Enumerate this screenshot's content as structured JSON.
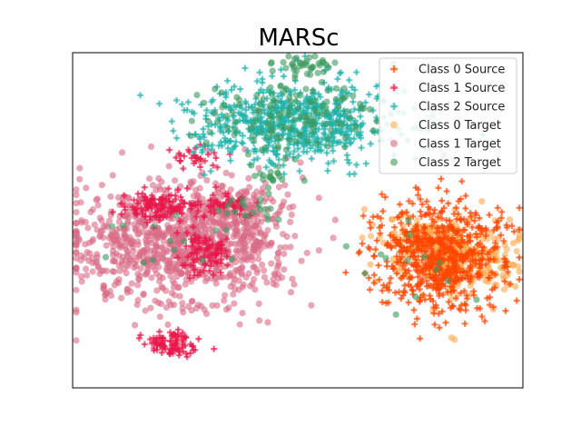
{
  "chart_data": {
    "type": "scatter",
    "title": "MARSc",
    "xlabel": "",
    "ylabel": "",
    "xlim": [
      -60,
      60
    ],
    "ylim": [
      -60,
      60
    ],
    "axis_ticks": false,
    "grid": false,
    "legend_placement": "top-right",
    "series": [
      {
        "name": "Class 0 Source",
        "marker": "plus",
        "color": "#ff4500",
        "clusters": [
          {
            "center": [
              38,
              -13
            ],
            "spread": [
              8.5,
              9.5
            ],
            "n": 650
          }
        ]
      },
      {
        "name": "Class 1 Source",
        "marker": "plus",
        "color": "#e8174a",
        "clusters": [
          {
            "center": [
              -37,
              5
            ],
            "spread": [
              5,
              3
            ],
            "n": 120
          },
          {
            "center": [
              -25,
              -11
            ],
            "spread": [
              3,
              4
            ],
            "n": 90
          },
          {
            "center": [
              -34,
              -44
            ],
            "spread": [
              3.5,
              2.3
            ],
            "n": 90
          },
          {
            "center": [
              -19,
              6
            ],
            "spread": [
              4,
              2.5
            ],
            "n": 50
          },
          {
            "center": [
              -28,
              22
            ],
            "spread": [
              4,
              3
            ],
            "n": 30
          }
        ]
      },
      {
        "name": "Class 2 Source",
        "marker": "plus",
        "color": "#20b2aa",
        "clusters": [
          {
            "center": [
              -2,
              35
            ],
            "spread": [
              13,
              7
            ],
            "n": 650
          }
        ]
      },
      {
        "name": "Class 0 Target",
        "marker": "circle",
        "color": "#ffa94d",
        "clusters": [
          {
            "center": [
              44,
              -14
            ],
            "spread": [
              8,
              7
            ],
            "n": 240
          },
          {
            "center": [
              34,
              -5
            ],
            "spread": [
              6,
              5
            ],
            "n": 90
          }
        ]
      },
      {
        "name": "Class 1 Target",
        "marker": "circle",
        "color": "#d96b86",
        "clusters": [
          {
            "center": [
              -34,
              -10
            ],
            "spread": [
              14,
              11
            ],
            "n": 800
          },
          {
            "center": [
              -16,
              0
            ],
            "spread": [
              7,
              9
            ],
            "n": 260
          }
        ]
      },
      {
        "name": "Class 2 Target",
        "marker": "circle",
        "color": "#3c9a5f",
        "clusters": [
          {
            "center": [
              -2,
              36
            ],
            "spread": [
              12,
              7
            ],
            "n": 140
          },
          {
            "center": [
              2,
              55
            ],
            "spread": [
              4,
              2
            ],
            "n": 40
          },
          {
            "center": [
              -6,
              16
            ],
            "spread": [
              3,
              2
            ],
            "n": 20
          },
          {
            "center": [
              -12,
              4
            ],
            "spread": [
              4,
              3
            ],
            "n": 20
          },
          {
            "center": [
              30,
              -20
            ],
            "spread": [
              10,
              8
            ],
            "n": 14
          },
          {
            "center": [
              -30,
              -8
            ],
            "spread": [
              10,
              8
            ],
            "n": 14
          }
        ]
      }
    ]
  }
}
